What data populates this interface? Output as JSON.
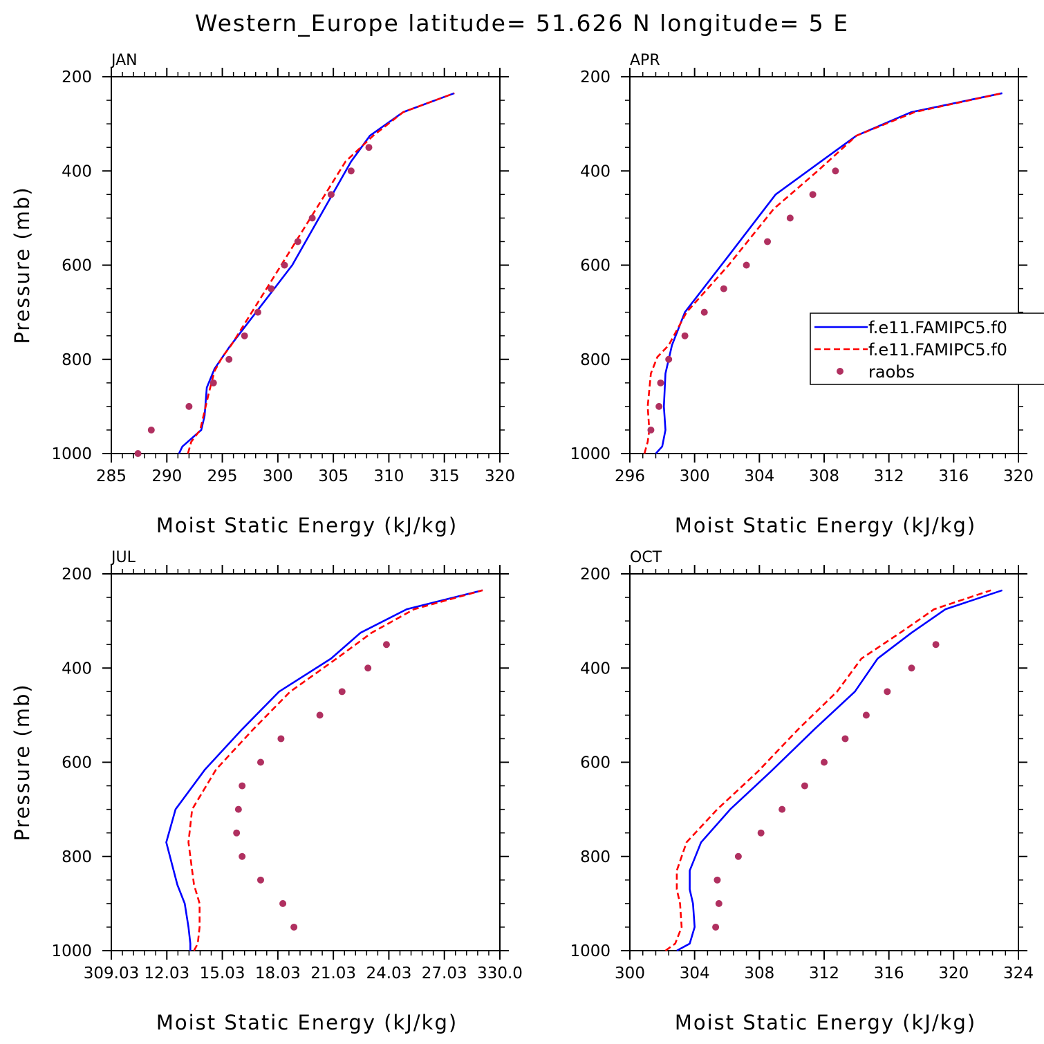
{
  "figure": {
    "title": "Western_Europe  latitude= 51.626 N longitude= 5 E"
  },
  "legend": {
    "entries": [
      {
        "label": "f.e11.FAMIPC5.f0",
        "style": "solid",
        "color": "#0000ff"
      },
      {
        "label": "f.e11.FAMIPC5.f0",
        "style": "dashed",
        "color": "#ff0000"
      },
      {
        "label": "raobs",
        "style": "dot",
        "color": "#b03060"
      }
    ]
  },
  "chart_data": [
    {
      "type": "line",
      "title": "JAN",
      "xlabel": "Moist Static Energy (kJ/kg)",
      "ylabel": "Pressure (mb)",
      "xlim": [
        285,
        320
      ],
      "ylim": [
        1000,
        200
      ],
      "xticks": [
        285,
        290,
        295,
        300,
        305,
        310,
        315,
        320
      ],
      "xtick_labels": [
        "285",
        "290",
        "295",
        "300",
        "305",
        "310",
        "315",
        "320"
      ],
      "yticks": [
        200,
        400,
        600,
        800,
        1000
      ],
      "ytick_labels": [
        "200",
        "400",
        "600",
        "800",
        "1000"
      ],
      "series": [
        {
          "style": "solid",
          "color": "#0000ff",
          "x": [
            291.1,
            291.4,
            293.1,
            293.4,
            293.6,
            294.3,
            295.6,
            301.3,
            306.6,
            308.3,
            311.3,
            315.9
          ],
          "y": [
            1000,
            985,
            950,
            920,
            860,
            820,
            775,
            600,
            380,
            325,
            275,
            235
          ]
        },
        {
          "style": "dashed",
          "color": "#ff0000",
          "x": [
            291.9,
            292.2,
            293.0,
            293.3,
            293.8,
            294.3,
            295.0,
            295.8,
            300.3,
            306.1,
            308.6,
            311.3,
            315.9
          ],
          "y": [
            1000,
            975,
            950,
            920,
            870,
            825,
            795,
            770,
            600,
            380,
            325,
            275,
            235
          ]
        },
        {
          "style": "dot",
          "color": "#b03060",
          "x": [
            287.4,
            288.6,
            292.0,
            294.2,
            295.6,
            297.0,
            298.2,
            299.4,
            300.6,
            301.8,
            303.1,
            304.8,
            306.6,
            308.2
          ],
          "y": [
            1000,
            950,
            900,
            850,
            800,
            750,
            700,
            650,
            600,
            550,
            500,
            450,
            400,
            350
          ]
        }
      ]
    },
    {
      "type": "line",
      "title": "APR",
      "xlabel": "Moist Static Energy (kJ/kg)",
      "ylabel": "",
      "xlim": [
        296,
        320
      ],
      "ylim": [
        1000,
        200
      ],
      "xticks": [
        296,
        300,
        304,
        308,
        312,
        316,
        320
      ],
      "xtick_labels": [
        "296",
        "300",
        "304",
        "308",
        "312",
        "316",
        "320"
      ],
      "yticks": [
        200,
        400,
        600,
        800,
        1000
      ],
      "ytick_labels": [
        "200",
        "400",
        "600",
        "800",
        "1000"
      ],
      "series": [
        {
          "style": "solid",
          "color": "#0000ff",
          "x": [
            297.6,
            298.0,
            298.2,
            298.1,
            298.2,
            298.6,
            299.4,
            302.1,
            305.0,
            307.8,
            310.0,
            313.4,
            319.0
          ],
          "y": [
            1000,
            985,
            950,
            900,
            830,
            770,
            700,
            580,
            450,
            380,
            325,
            275,
            235
          ]
        },
        {
          "style": "dashed",
          "color": "#ff0000",
          "x": [
            296.9,
            297.1,
            297.2,
            297.1,
            297.3,
            297.7,
            298.4,
            299.5,
            302.1,
            304.9,
            307.6,
            310.0,
            313.6,
            319.0
          ],
          "y": [
            1000,
            975,
            950,
            900,
            830,
            795,
            770,
            700,
            600,
            480,
            400,
            325,
            275,
            235
          ]
        },
        {
          "style": "dot",
          "color": "#b03060",
          "x": [
            297.3,
            297.8,
            297.9,
            298.4,
            299.4,
            300.6,
            301.8,
            303.2,
            304.5,
            305.9,
            307.3,
            308.7
          ],
          "y": [
            950,
            900,
            850,
            800,
            750,
            700,
            650,
            600,
            550,
            500,
            450,
            400
          ]
        }
      ]
    },
    {
      "type": "line",
      "title": "JUL",
      "xlabel": "Moist Static Energy (kJ/kg)",
      "ylabel": "Pressure (mb)",
      "xlim": [
        309.03,
        330.03
      ],
      "ylim": [
        1000,
        200
      ],
      "xticks": [
        309.03,
        312.03,
        315.03,
        318.03,
        321.03,
        324.03,
        327.03,
        330.03
      ],
      "xtick_labels": [
        "309.03",
        "12.03",
        "15.03",
        "18.03",
        "21.03",
        "24.03",
        "27.03",
        "330.0"
      ],
      "yticks": [
        200,
        400,
        600,
        800,
        1000
      ],
      "ytick_labels": [
        "200",
        "400",
        "600",
        "800",
        "1000"
      ],
      "series": [
        {
          "style": "solid",
          "color": "#0000ff",
          "x": [
            313.3,
            313.3,
            313.2,
            313.0,
            312.6,
            312.0,
            312.5,
            314.1,
            316.1,
            318.1,
            320.9,
            322.5,
            325.0,
            329.1
          ],
          "y": [
            1000,
            985,
            950,
            900,
            860,
            770,
            700,
            615,
            530,
            450,
            380,
            325,
            275,
            235
          ]
        },
        {
          "style": "dashed",
          "color": "#ff0000",
          "x": [
            313.5,
            313.7,
            313.8,
            313.8,
            313.5,
            313.2,
            313.4,
            314.7,
            316.7,
            318.7,
            321.2,
            323.1,
            325.4,
            329.1
          ],
          "y": [
            1000,
            985,
            950,
            900,
            860,
            770,
            700,
            615,
            530,
            450,
            380,
            325,
            275,
            235
          ]
        },
        {
          "style": "dot",
          "color": "#b03060",
          "x": [
            318.9,
            318.3,
            317.1,
            316.1,
            315.8,
            315.9,
            316.1,
            317.1,
            318.2,
            320.3,
            321.5,
            322.9,
            323.9
          ],
          "y": [
            950,
            900,
            850,
            800,
            750,
            700,
            650,
            600,
            550,
            500,
            450,
            400,
            350
          ]
        }
      ]
    },
    {
      "type": "line",
      "title": "OCT",
      "xlabel": "Moist Static Energy (kJ/kg)",
      "ylabel": "",
      "xlim": [
        300,
        324
      ],
      "ylim": [
        1000,
        200
      ],
      "xticks": [
        300,
        304,
        308,
        312,
        316,
        320,
        324
      ],
      "xtick_labels": [
        "300",
        "304",
        "308",
        "312",
        "316",
        "320",
        "324"
      ],
      "yticks": [
        200,
        400,
        600,
        800,
        1000
      ],
      "ytick_labels": [
        "200",
        "400",
        "600",
        "800",
        "1000"
      ],
      "series": [
        {
          "style": "solid",
          "color": "#0000ff",
          "x": [
            302.9,
            303.7,
            304.0,
            303.9,
            303.7,
            303.7,
            304.4,
            306.2,
            308.7,
            311.4,
            313.9,
            315.3,
            317.4,
            319.5,
            323.0
          ],
          "y": [
            1000,
            985,
            950,
            900,
            870,
            830,
            770,
            700,
            620,
            530,
            450,
            380,
            325,
            275,
            235
          ]
        },
        {
          "style": "dashed",
          "color": "#ff0000",
          "x": [
            302.2,
            302.8,
            303.2,
            303.1,
            302.9,
            302.9,
            303.5,
            305.4,
            307.9,
            310.4,
            312.8,
            314.3,
            316.7,
            318.8,
            322.3
          ],
          "y": [
            1000,
            985,
            950,
            900,
            870,
            830,
            770,
            700,
            620,
            530,
            450,
            380,
            325,
            275,
            235
          ]
        },
        {
          "style": "dot",
          "color": "#b03060",
          "x": [
            305.3,
            305.5,
            305.4,
            306.7,
            308.1,
            309.4,
            310.8,
            312.0,
            313.3,
            314.6,
            315.9,
            317.4,
            318.9
          ],
          "y": [
            950,
            900,
            850,
            800,
            750,
            700,
            650,
            600,
            550,
            500,
            450,
            400,
            350
          ]
        }
      ]
    }
  ]
}
